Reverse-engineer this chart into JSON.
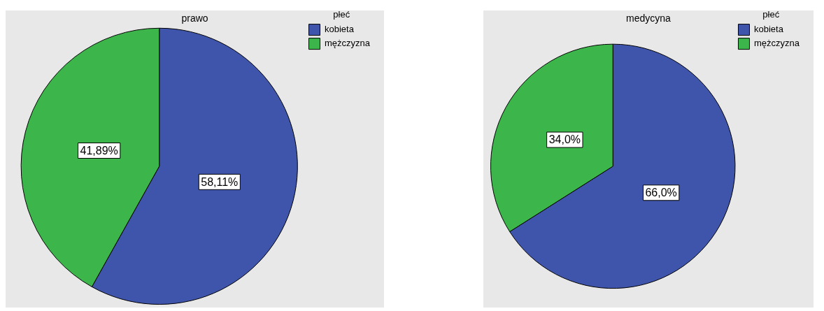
{
  "chart_data": [
    {
      "type": "pie",
      "title": "prawo",
      "legend_title": "płeć",
      "legend": "top right",
      "categories": [
        "kobieta",
        "mężczyzna"
      ],
      "values": [
        58.11,
        41.89
      ],
      "colors": [
        "#3f55ab",
        "#3cb54a"
      ],
      "value_labels": [
        "58,11%",
        "41,89%"
      ]
    },
    {
      "type": "pie",
      "title": "medycyna",
      "legend_title": "płeć",
      "legend": "top right",
      "categories": [
        "kobieta",
        "mężczyzna"
      ],
      "values": [
        66.0,
        34.0
      ],
      "colors": [
        "#3f55ab",
        "#3cb54a"
      ],
      "value_labels": [
        "66,0%",
        "34,0%"
      ]
    }
  ]
}
